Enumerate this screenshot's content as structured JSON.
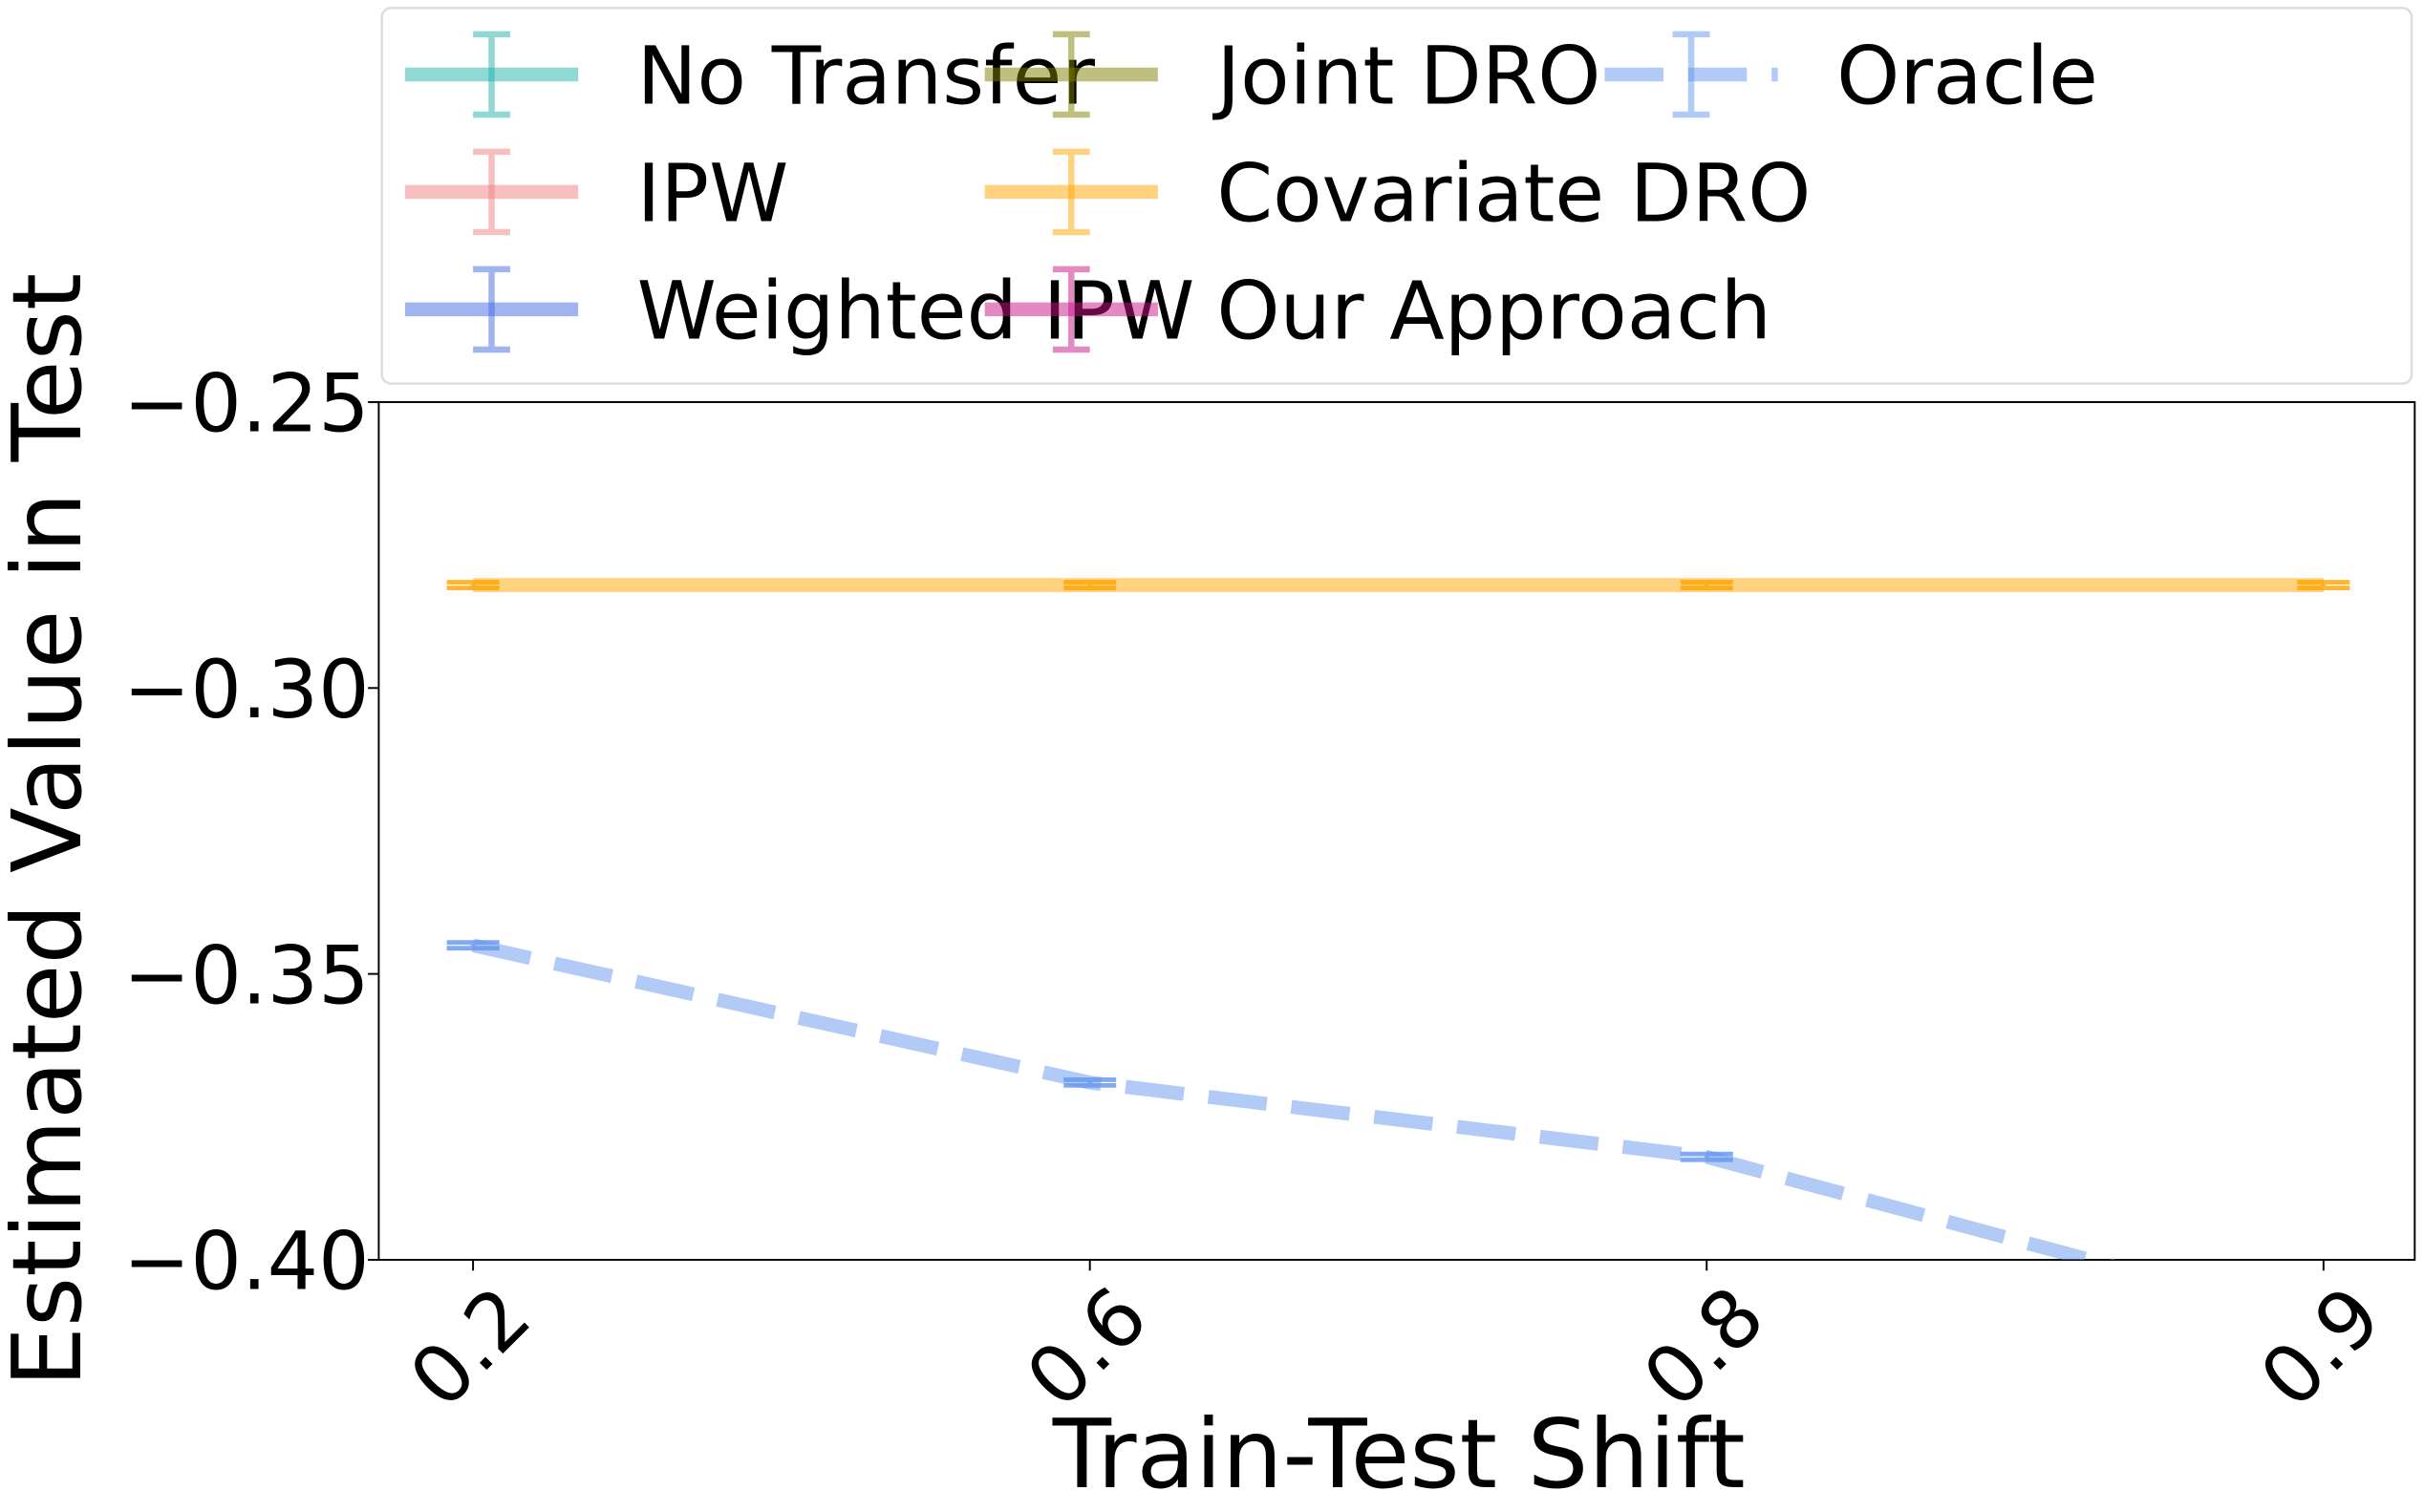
{
  "chart_data": {
    "type": "line",
    "xlabel": "Train-Test Shift",
    "ylabel": "Estimated Value in Test",
    "categories": [
      "0.2",
      "0.6",
      "0.8",
      "0.9"
    ],
    "ylim": [
      -0.4,
      -0.25
    ],
    "yticks": [
      {
        "value": -0.25,
        "label": "−0.25"
      },
      {
        "value": -0.3,
        "label": "−0.30"
      },
      {
        "value": -0.35,
        "label": "−0.35"
      },
      {
        "value": -0.4,
        "label": "−0.40"
      }
    ],
    "grid": false,
    "legend_ncol": 3,
    "series": [
      {
        "name": "No Transfer",
        "color": "#20b2aa",
        "values": [
          null,
          null,
          null,
          null
        ],
        "errors": [
          null,
          null,
          null,
          null
        ]
      },
      {
        "name": "IPW",
        "color": "#f08080",
        "values": [
          null,
          null,
          null,
          null
        ],
        "errors": [
          null,
          null,
          null,
          null
        ]
      },
      {
        "name": "Weighted IPW",
        "color": "#4169e1",
        "values": [
          null,
          null,
          null,
          null
        ],
        "errors": [
          null,
          null,
          null,
          null
        ]
      },
      {
        "name": "Joint DRO",
        "color": "#808000",
        "values": [
          null,
          null,
          null,
          null
        ],
        "errors": [
          null,
          null,
          null,
          null
        ]
      },
      {
        "name": "Covariate DRO",
        "color": "#ffa500",
        "values": [
          -0.282,
          -0.282,
          -0.282,
          -0.282
        ],
        "errors": [
          0.0005,
          0.0005,
          0.0005,
          0.0005
        ]
      },
      {
        "name": "Our Approach",
        "color": "#c71585",
        "values": [
          null,
          null,
          null,
          null
        ],
        "errors": [
          null,
          null,
          null,
          null
        ]
      },
      {
        "name": "Oracle",
        "color": "#6495ed",
        "dashed": true,
        "values": [
          -0.345,
          -0.369,
          -0.382,
          -0.411
        ],
        "errors": [
          0.0005,
          0.0005,
          0.0005,
          0.0005
        ]
      }
    ]
  }
}
